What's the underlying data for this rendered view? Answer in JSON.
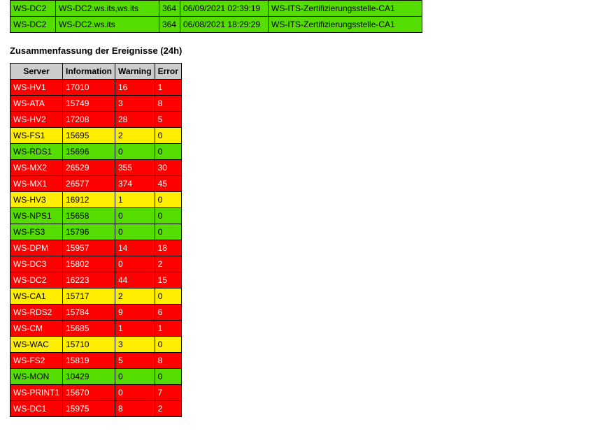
{
  "colors": {
    "green": "#55dd00",
    "yellow": "#ffee00",
    "red": "#ff0000",
    "header_bg": "#cccccc",
    "border": "#000000",
    "page_bg": "#ffffff",
    "text_on_red": "#ffffff",
    "text_default": "#000000"
  },
  "cert_table": {
    "rows": [
      {
        "server": "WS-DC2",
        "name": "WS-DC2.ws.its,ws.its",
        "days": "364",
        "timestamp": "06/09/2021 02:39:19",
        "issuer": "WS-ITS-Zertifizierungsstelle-CA1",
        "status": "green"
      },
      {
        "server": "WS-DC2",
        "name": "WS-DC2.ws.its",
        "days": "364",
        "timestamp": "06/08/2021 18:29:29",
        "issuer": "WS-ITS-Zertifizierungsstelle-CA1",
        "status": "green"
      }
    ]
  },
  "events_section": {
    "title": "Zusammenfassung der Ereignisse (24h)",
    "headers": [
      "Server",
      "Information",
      "Warning",
      "Error"
    ],
    "rows": [
      {
        "server": "WS-HV1",
        "info": "17010",
        "warn": "16",
        "err": "1",
        "status": "red"
      },
      {
        "server": "WS-ATA",
        "info": "15749",
        "warn": "3",
        "err": "8",
        "status": "red"
      },
      {
        "server": "WS-HV2",
        "info": "17208",
        "warn": "28",
        "err": "5",
        "status": "red"
      },
      {
        "server": "WS-FS1",
        "info": "15695",
        "warn": "2",
        "err": "0",
        "status": "yellow"
      },
      {
        "server": "WS-RDS1",
        "info": "15696",
        "warn": "0",
        "err": "0",
        "status": "green"
      },
      {
        "server": "WS-MX2",
        "info": "26529",
        "warn": "355",
        "err": "30",
        "status": "red"
      },
      {
        "server": "WS-MX1",
        "info": "26577",
        "warn": "374",
        "err": "45",
        "status": "red"
      },
      {
        "server": "WS-HV3",
        "info": "16912",
        "warn": "1",
        "err": "0",
        "status": "yellow"
      },
      {
        "server": "WS-NPS1",
        "info": "15658",
        "warn": "0",
        "err": "0",
        "status": "green"
      },
      {
        "server": "WS-FS3",
        "info": "15796",
        "warn": "0",
        "err": "0",
        "status": "green"
      },
      {
        "server": "WS-DPM",
        "info": "15957",
        "warn": "14",
        "err": "18",
        "status": "red"
      },
      {
        "server": "WS-DC3",
        "info": "15802",
        "warn": "0",
        "err": "2",
        "status": "red"
      },
      {
        "server": "WS-DC2",
        "info": "16223",
        "warn": "44",
        "err": "15",
        "status": "red"
      },
      {
        "server": "WS-CA1",
        "info": "15717",
        "warn": "2",
        "err": "0",
        "status": "yellow"
      },
      {
        "server": "WS-RDS2",
        "info": "15784",
        "warn": "9",
        "err": "6",
        "status": "red"
      },
      {
        "server": "WS-CM",
        "info": "15685",
        "warn": "1",
        "err": "1",
        "status": "red"
      },
      {
        "server": "WS-WAC",
        "info": "15710",
        "warn": "3",
        "err": "0",
        "status": "yellow"
      },
      {
        "server": "WS-FS2",
        "info": "15819",
        "warn": "5",
        "err": "8",
        "status": "red"
      },
      {
        "server": "WS-MON",
        "info": "10429",
        "warn": "0",
        "err": "0",
        "status": "green"
      },
      {
        "server": "WS-PRINT1",
        "info": "15670",
        "warn": "0",
        "err": "7",
        "status": "red"
      },
      {
        "server": "WS-DC1",
        "info": "15975",
        "warn": "8",
        "err": "2",
        "status": "red"
      }
    ]
  }
}
